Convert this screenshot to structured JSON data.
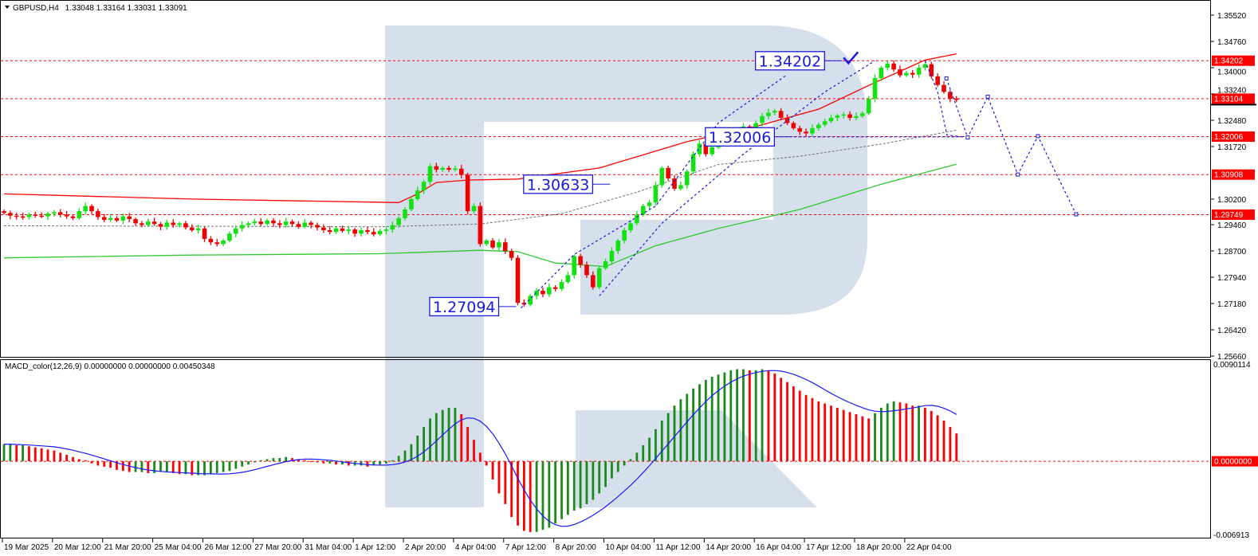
{
  "header": {
    "symbol": "GBPUSD,H4",
    "ohlc": "1.33048 1.33164 1.33031 1.33091",
    "menu_icon": "triangle-down-icon"
  },
  "macd_header": {
    "label": "MACD_color(12,26,9) 0.00000000 0.00000000 0.00450348"
  },
  "colors": {
    "bull": "#12e212",
    "bear": "#ee0000",
    "ma_red": "#ff0000",
    "ma_green": "#2ec82e",
    "ma_gray": "#707070",
    "forecast": "#1a1adc",
    "level": "#ff0000",
    "hist_up": "#1a8a1a",
    "hist_down": "#ff0000",
    "signal": "#1a1aff",
    "watermark": "#d6e0ec"
  },
  "chart_data": [
    {
      "type": "candlestick",
      "title": "GBPUSD,H4",
      "ylim": [
        1.2566,
        1.3552
      ],
      "y_ticks": [
        "1.35520",
        "1.34760",
        "1.34000",
        "1.33240",
        "1.32480",
        "1.31720",
        "1.30200",
        "1.29460",
        "1.28700",
        "1.27940",
        "1.27180",
        "1.26420",
        "1.25660"
      ],
      "x_tick_labels": [
        "19 Mar 2025",
        "20 Mar 12:00",
        "21 Mar 20:00",
        "25 Mar 04:00",
        "26 Mar 12:00",
        "27 Mar 20:00",
        "31 Mar 04:00",
        "1 Apr 12:00",
        "2 Apr 20:00",
        "4 Apr 04:00",
        "7 Apr 12:00",
        "8 Apr 20:00",
        "10 Apr 04:00",
        "11 Apr 12:00",
        "14 Apr 20:00",
        "16 Apr 04:00",
        "17 Apr 12:00",
        "18 Apr 20:00",
        "22 Apr 04:00"
      ],
      "bars_per_tick": 8,
      "closes": [
        1.298,
        1.2972,
        1.297,
        1.2968,
        1.2975,
        1.2972,
        1.297,
        1.2978,
        1.2982,
        1.2975,
        1.297,
        1.2965,
        1.2985,
        1.3,
        1.2985,
        1.2968,
        1.296,
        1.2965,
        1.2958,
        1.297,
        1.2962,
        1.295,
        1.2945,
        1.2955,
        1.2948,
        1.294,
        1.2952,
        1.2945,
        1.295,
        1.2938,
        1.293,
        1.2935,
        1.2905,
        1.2895,
        1.289,
        1.29,
        1.292,
        1.2935,
        1.2945,
        1.295,
        1.2955,
        1.2948,
        1.2958,
        1.295,
        1.2945,
        1.2955,
        1.2948,
        1.294,
        1.2952,
        1.2945,
        1.2938,
        1.293,
        1.2925,
        1.2935,
        1.2928,
        1.2932,
        1.292,
        1.293,
        1.2925,
        1.2918,
        1.2928,
        1.2932,
        1.2945,
        1.2965,
        1.299,
        1.302,
        1.3045,
        1.307,
        1.3115,
        1.3105,
        1.311,
        1.3105,
        1.3108,
        1.309,
        1.2985,
        1.3,
        1.289,
        1.29,
        1.288,
        1.2895,
        1.287,
        1.285,
        1.272,
        1.2715,
        1.274,
        1.2755,
        1.2745,
        1.2765,
        1.276,
        1.278,
        1.28,
        1.2855,
        1.283,
        1.28,
        1.2765,
        1.282,
        1.284,
        1.287,
        1.29,
        1.293,
        1.295,
        1.2975,
        1.3,
        1.301,
        1.306,
        1.311,
        1.308,
        1.305,
        1.306,
        1.31,
        1.315,
        1.318,
        1.315,
        1.317,
        1.3185,
        1.32,
        1.321,
        1.322,
        1.323,
        1.3225,
        1.324,
        1.326,
        1.327,
        1.3275,
        1.3255,
        1.324,
        1.3225,
        1.3215,
        1.321,
        1.3225,
        1.3235,
        1.3245,
        1.3255,
        1.3262,
        1.3265,
        1.3255,
        1.326,
        1.3268,
        1.331,
        1.337,
        1.34,
        1.3412,
        1.3395,
        1.3378,
        1.3385,
        1.338,
        1.34,
        1.341,
        1.3375,
        1.335,
        1.333,
        1.331,
        1.3309
      ],
      "moving_averages": [
        {
          "color_key": "ma_red",
          "style": "solid",
          "points": [
            [
              0,
              1.3035
            ],
            [
              30,
              1.302
            ],
            [
              63,
              1.301
            ],
            [
              66,
              1.3035
            ],
            [
              69,
              1.3068
            ],
            [
              74,
              1.3075
            ],
            [
              82,
              1.3078
            ],
            [
              95,
              1.311
            ],
            [
              109,
              1.3186
            ],
            [
              120,
              1.323
            ],
            [
              130,
              1.328
            ],
            [
              139,
              1.3357
            ],
            [
              147,
              1.3422
            ],
            [
              152,
              1.344
            ]
          ]
        },
        {
          "color_key": "ma_green",
          "style": "solid",
          "points": [
            [
              0,
              1.285
            ],
            [
              30,
              1.2858
            ],
            [
              60,
              1.2862
            ],
            [
              76,
              1.2872
            ],
            [
              82,
              1.2868
            ],
            [
              88,
              1.2835
            ],
            [
              96,
              1.2825
            ],
            [
              104,
              1.2885
            ],
            [
              114,
              1.2935
            ],
            [
              127,
              1.299
            ],
            [
              140,
              1.3063
            ],
            [
              152,
              1.3121
            ]
          ]
        },
        {
          "color_key": "ma_gray",
          "style": "dashed",
          "points": [
            [
              0,
              1.2943
            ],
            [
              60,
              1.294
            ],
            [
              76,
              1.2948
            ],
            [
              89,
              1.2978
            ],
            [
              101,
              1.304
            ],
            [
              114,
              1.312
            ],
            [
              127,
              1.3144
            ],
            [
              140,
              1.3179
            ],
            [
              152,
              1.3219
            ]
          ]
        }
      ],
      "levels": [
        "1.34202",
        "1.33104",
        "1.32006",
        "1.30908",
        "1.29749"
      ],
      "current_price": "1.33104",
      "forecast_path": [
        [
          150.4,
          1.3369
        ],
        [
          153.8,
          1.3198
        ],
        [
          157,
          1.3316
        ],
        [
          161.8,
          1.3091
        ],
        [
          165,
          1.3202
        ],
        [
          171.1,
          1.2976
        ]
      ],
      "trend_lines": [
        [
          [
            82.5,
            1.2705
          ],
          [
            91,
            1.286
          ],
          [
            104,
            1.3
          ],
          [
            114,
            1.324
          ],
          [
            125,
            1.338
          ]
        ],
        [
          [
            95,
            1.274
          ],
          [
            105,
            1.295
          ],
          [
            118,
            1.315
          ],
          [
            131,
            1.333
          ],
          [
            139,
            1.342
          ]
        ],
        [
          [
            126,
            1.32
          ],
          [
            153,
            1.32
          ]
        ],
        [
          [
            147,
            1.342
          ],
          [
            149,
            1.333
          ],
          [
            150.5,
            1.3205
          ],
          [
            153,
            1.32
          ]
        ]
      ],
      "annotations": [
        {
          "text": "1.34202",
          "bar": 134,
          "price": 1.342,
          "check": true
        },
        {
          "text": "1.32006",
          "bar": 126,
          "price": 1.32
        },
        {
          "text": "1.30633",
          "bar": 97,
          "price": 1.3063
        },
        {
          "text": "1.27094",
          "bar": 82,
          "price": 1.2709
        }
      ]
    },
    {
      "type": "bar",
      "title": "MACD_color(12,26,9)",
      "ylim": [
        -0.006913,
        0.0090114
      ],
      "y_ticks": [
        "0.0090114",
        "-0.006913"
      ],
      "zero_tag": "0.0000000",
      "histogram": [
        0.0016,
        0.0016,
        0.0015,
        0.0015,
        0.0014,
        0.0013,
        0.0012,
        0.0011,
        0.001,
        0.0008,
        0.0006,
        0.0004,
        0.0002,
        0.0001,
        -0.0002,
        -0.0004,
        -0.0005,
        -0.0006,
        -0.0008,
        -0.0009,
        -0.001,
        -0.001,
        -0.001,
        -0.0011,
        -0.0011,
        -0.001,
        -0.001,
        -0.0011,
        -0.0012,
        -0.0012,
        -0.0013,
        -0.0013,
        -0.0013,
        -0.0012,
        -0.0011,
        -0.001,
        -0.0009,
        -0.0007,
        -0.0005,
        -0.0003,
        -0.0001,
        0.0001,
        0.0002,
        0.0003,
        0.0003,
        0.0004,
        0.0003,
        0.0002,
        0.0001,
        0.0,
        -0.0001,
        -0.0002,
        -0.0002,
        -0.0003,
        -0.0003,
        -0.0004,
        -0.0004,
        -0.0004,
        -0.0005,
        -0.0004,
        -0.0003,
        -0.0002,
        0.0001,
        0.0005,
        0.001,
        0.0016,
        0.0024,
        0.0032,
        0.004,
        0.0045,
        0.0048,
        0.005,
        0.005,
        0.0044,
        0.0032,
        0.002,
        0.0008,
        -0.0004,
        -0.0017,
        -0.003,
        -0.004,
        -0.0052,
        -0.006,
        -0.0065,
        -0.0066,
        -0.0066,
        -0.0064,
        -0.0062,
        -0.0058,
        -0.0054,
        -0.005,
        -0.0046,
        -0.0044,
        -0.004,
        -0.0036,
        -0.003,
        -0.0024,
        -0.0016,
        -0.001,
        -0.0004,
        0.0002,
        0.0008,
        0.0015,
        0.0022,
        0.003,
        0.0038,
        0.0045,
        0.0052,
        0.0058,
        0.0063,
        0.0068,
        0.0072,
        0.0076,
        0.0079,
        0.0081,
        0.0083,
        0.0085,
        0.0086,
        0.0086,
        0.0085,
        0.0085,
        0.0086,
        0.0085,
        0.0082,
        0.0078,
        0.0074,
        0.007,
        0.0066,
        0.0062,
        0.0059,
        0.0056,
        0.0054,
        0.0052,
        0.005,
        0.0048,
        0.0046,
        0.0044,
        0.0042,
        0.004,
        0.0045,
        0.005,
        0.0054,
        0.0056,
        0.0055,
        0.0054,
        0.0052,
        0.0052,
        0.005,
        0.0047,
        0.0043,
        0.0038,
        0.0032,
        0.0026
      ]
    }
  ]
}
